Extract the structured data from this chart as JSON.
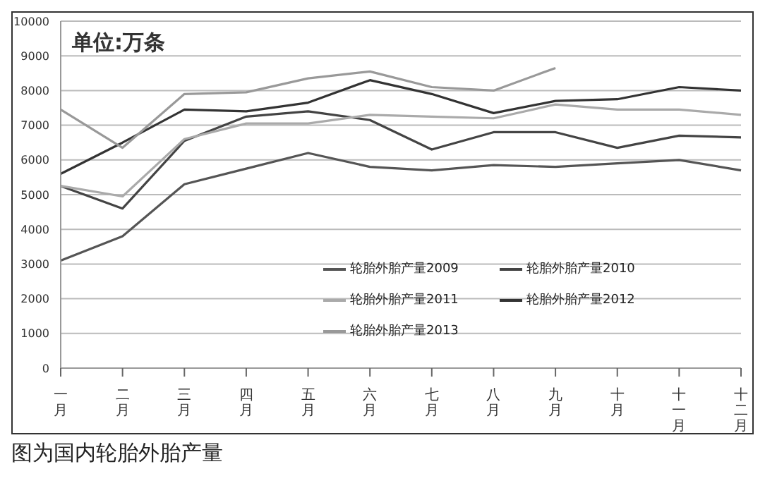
{
  "chart_data": {
    "type": "line",
    "categories": [
      "一月",
      "二月",
      "三月",
      "四月",
      "五月",
      "六月",
      "七月",
      "八月",
      "九月",
      "十月",
      "十一月",
      "十二月"
    ],
    "series": [
      {
        "name": "轮胎外胎产量2009",
        "color": "#555555",
        "values": [
          3100,
          3800,
          5300,
          5750,
          6200,
          5800,
          5700,
          5850,
          5800,
          5900,
          6000,
          5700
        ]
      },
      {
        "name": "轮胎外胎产量2010",
        "color": "#444444",
        "values": [
          5250,
          4600,
          6550,
          7250,
          7400,
          7150,
          6300,
          6800,
          6800,
          6350,
          6700,
          6650
        ]
      },
      {
        "name": "轮胎外胎产量2011",
        "color": "#aaaaaa",
        "values": [
          5250,
          4950,
          6600,
          7050,
          7050,
          7300,
          7250,
          7200,
          7600,
          7450,
          7450,
          7300
        ]
      },
      {
        "name": "轮胎外胎产量2012",
        "color": "#333333",
        "values": [
          5600,
          6500,
          7450,
          7400,
          7650,
          8300,
          7900,
          7350,
          7700,
          7750,
          8100,
          8000
        ]
      },
      {
        "name": "轮胎外胎产量2013",
        "color": "#999999",
        "values": [
          7450,
          6350,
          7900,
          7950,
          8350,
          8550,
          8100,
          8000,
          8650,
          null,
          null,
          null
        ]
      }
    ],
    "ylim": [
      0,
      10000
    ],
    "yticks": [
      0,
      1000,
      2000,
      3000,
      4000,
      5000,
      6000,
      7000,
      8000,
      9000,
      10000
    ],
    "grid": "y",
    "legend": "bottom right",
    "marker": "none",
    "line_style": "solid",
    "annotations": [
      "单位:万条",
      "图为国内轮胎外胎产量"
    ]
  }
}
